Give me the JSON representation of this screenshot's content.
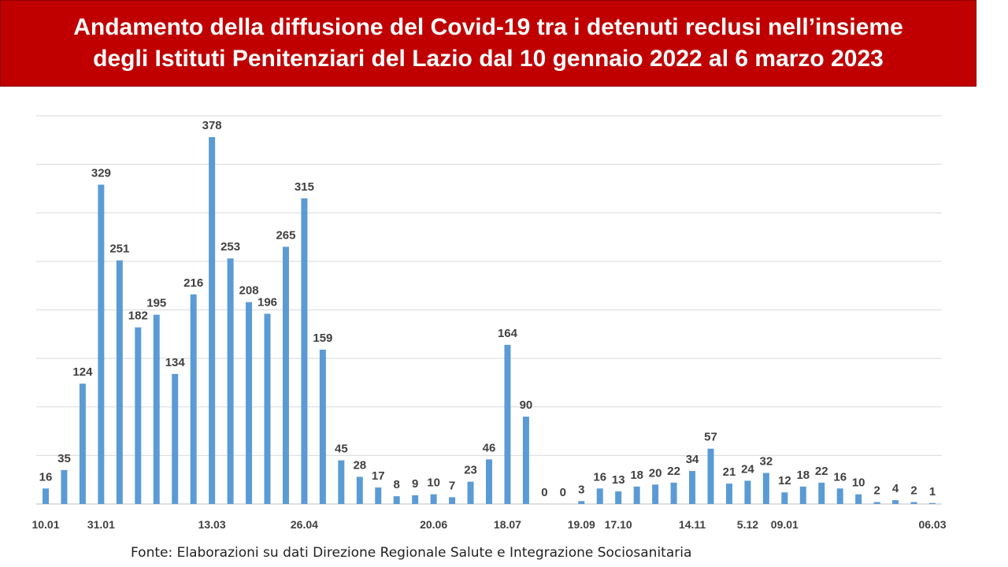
{
  "title": "Andamento della diffusione del Covid-19 tra i detenuti reclusi nell’insieme\ndegli Istituti Penitenziari del Lazio dal 10 gennaio 2022 al 6 marzo 2023",
  "source": "Fonte: Elaborazioni su dati Direzione Regionale Salute e Integrazione Sociosanitaria",
  "colors": {
    "banner": "#c00000",
    "bar": "#5b9bd5",
    "grid": "#d9d9d9",
    "text": "#404040"
  },
  "chart_data": {
    "type": "bar",
    "title": "Andamento della diffusione del Covid-19 tra i detenuti reclusi nell’insieme degli Istituti Penitenziari del Lazio dal 10 gennaio 2022 al 6 marzo 2023",
    "values": [
      16,
      35,
      124,
      329,
      251,
      182,
      195,
      134,
      216,
      378,
      253,
      208,
      196,
      265,
      315,
      159,
      45,
      28,
      17,
      8,
      9,
      10,
      7,
      23,
      46,
      164,
      90,
      0,
      0,
      3,
      16,
      13,
      18,
      20,
      22,
      34,
      57,
      21,
      24,
      32,
      12,
      18,
      22,
      16,
      10,
      2,
      4,
      2,
      1
    ],
    "tick_labels": [
      {
        "index": 0,
        "label": "10.01"
      },
      {
        "index": 3,
        "label": "31.01"
      },
      {
        "index": 9,
        "label": "13.03"
      },
      {
        "index": 14,
        "label": "26.04"
      },
      {
        "index": 21,
        "label": "20.06"
      },
      {
        "index": 25,
        "label": "18.07"
      },
      {
        "index": 29,
        "label": "19.09"
      },
      {
        "index": 31,
        "label": "17.10"
      },
      {
        "index": 35,
        "label": "14.11"
      },
      {
        "index": 38,
        "label": "5.12"
      },
      {
        "index": 40,
        "label": "09.01"
      },
      {
        "index": 48,
        "label": "06.03"
      }
    ],
    "ylim": [
      0,
      400
    ],
    "grid": true,
    "legend": "none",
    "data_labels": true
  }
}
